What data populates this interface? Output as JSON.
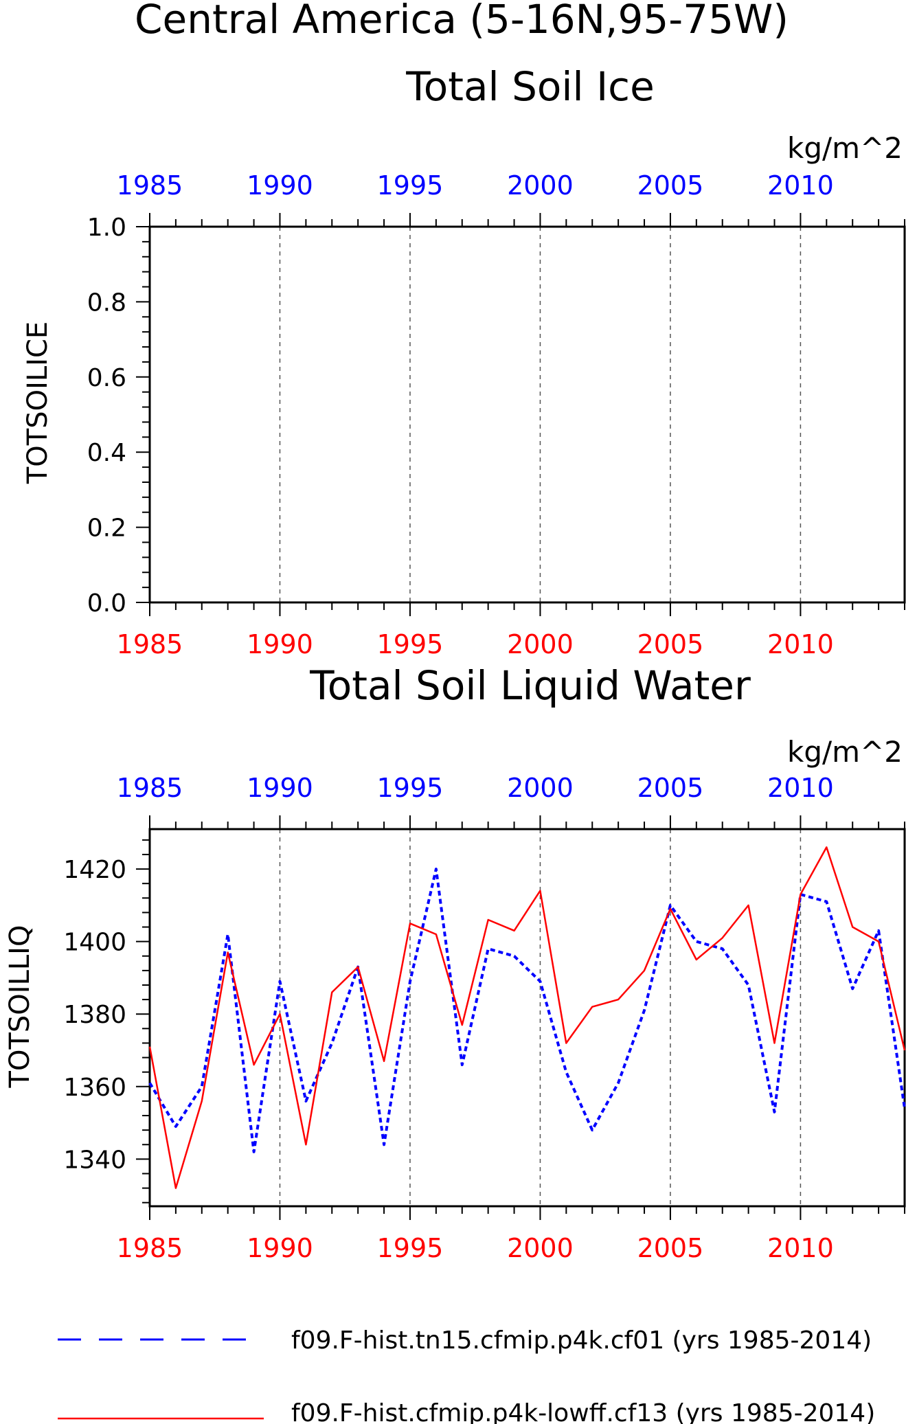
{
  "figure": {
    "title_line1": "Central America (5-16N,95-75W)",
    "colors": {
      "top_axis": "#0000ff",
      "bottom_axis": "#ff0000",
      "series_a": "#0000ff",
      "series_b": "#ff0000",
      "frame": "#000000",
      "grid": "#555555"
    }
  },
  "chart_data": [
    {
      "type": "line",
      "title": "Total Soil Ice",
      "units": "kg/m^2",
      "ylabel": "TOTSOILICE",
      "ylim": [
        0,
        1
      ],
      "yticks": [
        "0.0",
        "0.2",
        "0.4",
        "0.6",
        "0.8",
        "1.0"
      ],
      "xlim": [
        1985,
        2014
      ],
      "xticks": [
        "1985",
        "1990",
        "1995",
        "2000",
        "2005",
        "2010"
      ],
      "grid": "vertical dashed at 1990, 1995, 2000, 2005, 2010",
      "series": []
    },
    {
      "type": "line",
      "title": "Total Soil Liquid Water",
      "units": "kg/m^2",
      "ylabel": "TOTSOILLIQ",
      "ylim": [
        1327,
        1431
      ],
      "yticks": [
        "1340",
        "1360",
        "1380",
        "1400",
        "1420"
      ],
      "xlim": [
        1985,
        2014
      ],
      "xticks": [
        "1985",
        "1990",
        "1995",
        "2000",
        "2005",
        "2010"
      ],
      "grid": "vertical dashed at 1990, 1995, 2000, 2005, 2010",
      "x": [
        1985,
        1986,
        1987,
        1988,
        1989,
        1990,
        1991,
        1992,
        1993,
        1994,
        1995,
        1996,
        1997,
        1998,
        1999,
        2000,
        2001,
        2002,
        2003,
        2004,
        2005,
        2006,
        2007,
        2008,
        2009,
        2010,
        2011,
        2012,
        2013,
        2014
      ],
      "series": [
        {
          "name": "f09.F-hist.tn15.cfmip.p4k.cf01 (yrs 1985-2014)",
          "style": "dashed",
          "color": "#0000ff",
          "values": [
            1361,
            1349,
            1360,
            1402,
            1342,
            1389,
            1356,
            1372,
            1393,
            1344,
            1389,
            1420,
            1366,
            1398,
            1396,
            1389,
            1364,
            1348,
            1361,
            1381,
            1410,
            1400,
            1398,
            1388,
            1353,
            1413,
            1411,
            1387,
            1403,
            1354
          ]
        },
        {
          "name": "f09.F-hist.cfmip.p4k-lowff.cf13 (yrs 1985-2014)",
          "style": "solid",
          "color": "#ff0000",
          "values": [
            1371,
            1332,
            1356,
            1397,
            1366,
            1380,
            1344,
            1386,
            1393,
            1367,
            1405,
            1402,
            1377,
            1406,
            1403,
            1414,
            1372,
            1382,
            1384,
            1392,
            1409,
            1395,
            1401,
            1410,
            1372,
            1413,
            1426,
            1404,
            1400,
            1370
          ]
        }
      ]
    }
  ],
  "legend": [
    {
      "label": "f09.F-hist.tn15.cfmip.p4k.cf01 (yrs 1985-2014)",
      "style": "dashed",
      "color": "#0000ff"
    },
    {
      "label": "f09.F-hist.cfmip.p4k-lowff.cf13 (yrs 1985-2014)",
      "style": "solid",
      "color": "#ff0000"
    }
  ]
}
